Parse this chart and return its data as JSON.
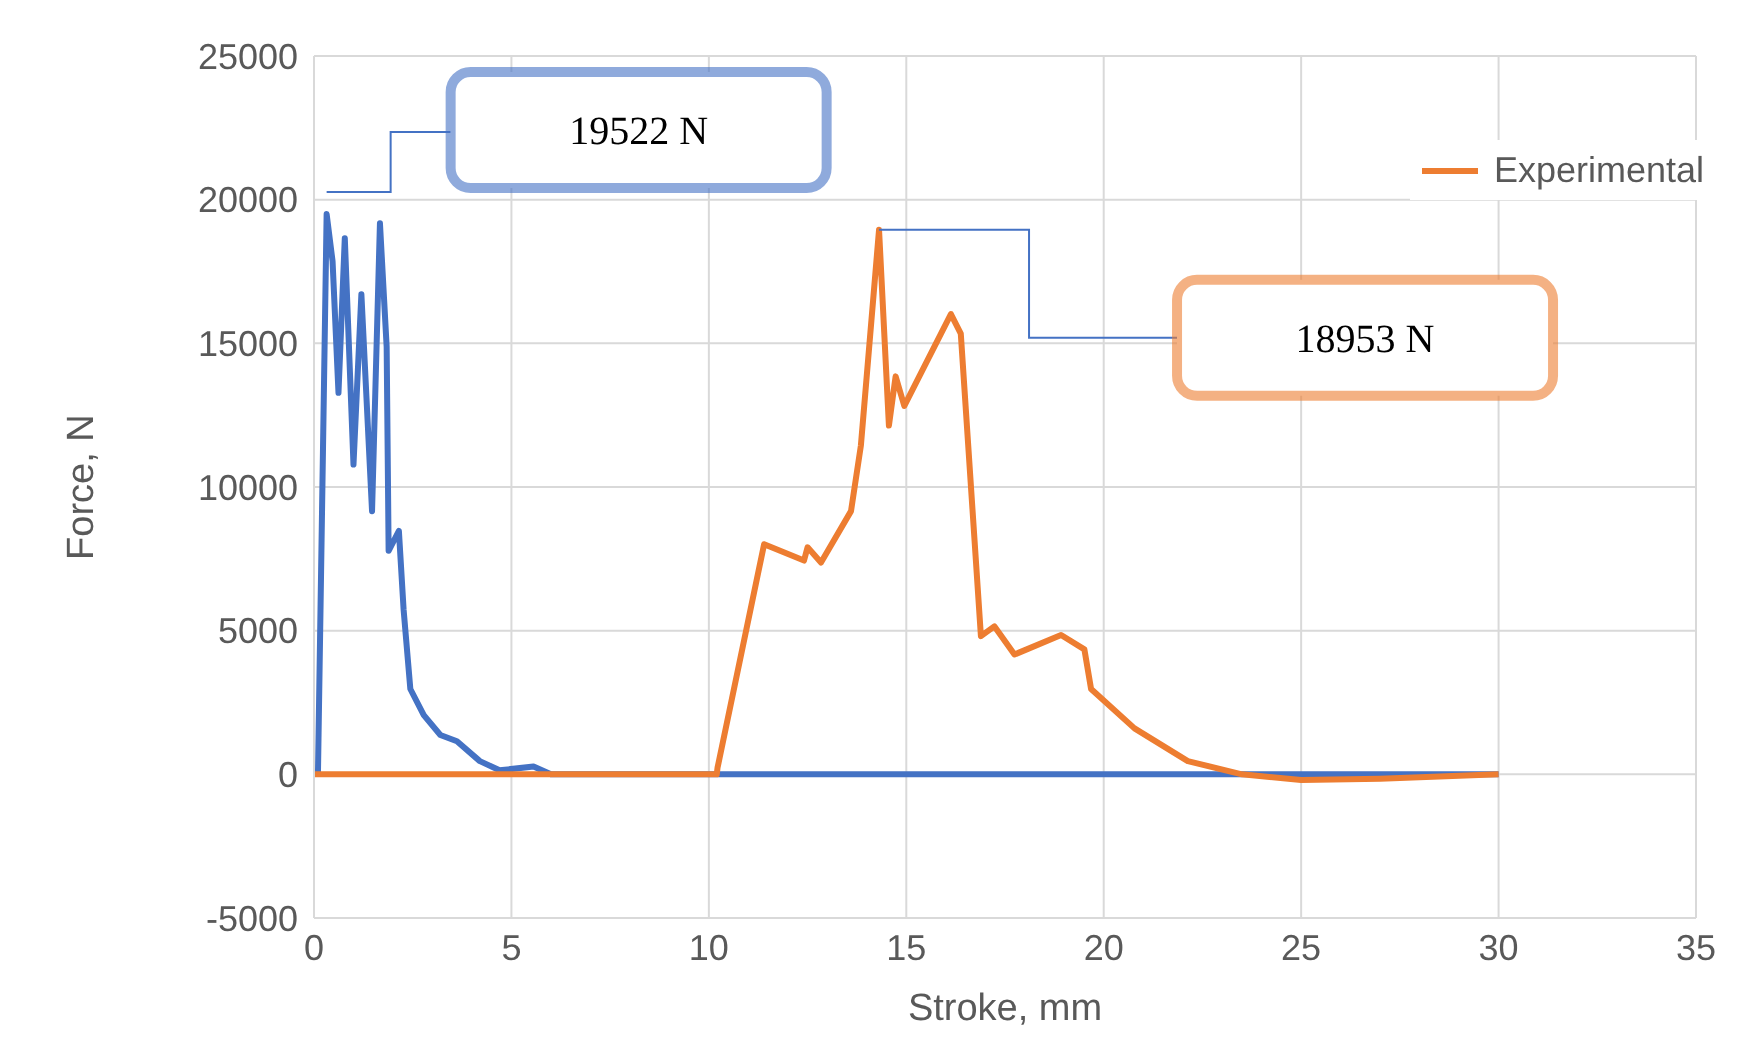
{
  "chart_data": {
    "type": "line",
    "xlabel": "Stroke, mm",
    "ylabel": "Force, N",
    "xlim": [
      0,
      35
    ],
    "xticks": [
      0,
      5,
      10,
      15,
      20,
      25,
      30,
      35
    ],
    "ylim": [
      -5000,
      25000
    ],
    "yticks": [
      -5000,
      0,
      5000,
      10000,
      15000,
      20000,
      25000
    ],
    "grid": true,
    "legend": "top right",
    "series": [
      {
        "color": "#4472c4",
        "x": [
          0.1,
          0.32,
          0.47,
          0.62,
          0.78,
          1.0,
          1.2,
          1.47,
          1.67,
          1.84,
          1.89,
          2.15,
          2.27,
          2.44,
          2.78,
          3.2,
          3.62,
          4.2,
          4.7,
          5.56,
          6,
          10,
          15,
          20,
          25,
          30
        ],
        "values": [
          0,
          19500,
          17860,
          13280,
          18660,
          10780,
          16710,
          9160,
          19180,
          14880,
          7780,
          8470,
          5720,
          2970,
          2060,
          1370,
          1150,
          460,
          140,
          270,
          0,
          0,
          0,
          0,
          0,
          0
        ]
      },
      {
        "name": "Experimental",
        "color": "#ed7d31",
        "x": [
          0,
          5,
          10.2,
          10.22,
          11.4,
          12.41,
          12.5,
          12.84,
          13.6,
          13.85,
          14.31,
          14.56,
          14.73,
          14.95,
          16.13,
          16.38,
          16.89,
          17.23,
          17.74,
          18.92,
          19.51,
          19.68,
          20.78,
          22.13,
          23.5,
          25,
          27,
          30
        ],
        "values": [
          0,
          0,
          0,
          230,
          8010,
          7440,
          7900,
          7370,
          9160,
          11440,
          18950,
          12140,
          13850,
          12820,
          16020,
          15340,
          4810,
          5150,
          4170,
          4850,
          4350,
          2970,
          1600,
          460,
          0,
          -200,
          -150,
          0
        ]
      }
    ],
    "annotations": [
      "19522 N",
      "18953 N"
    ]
  }
}
